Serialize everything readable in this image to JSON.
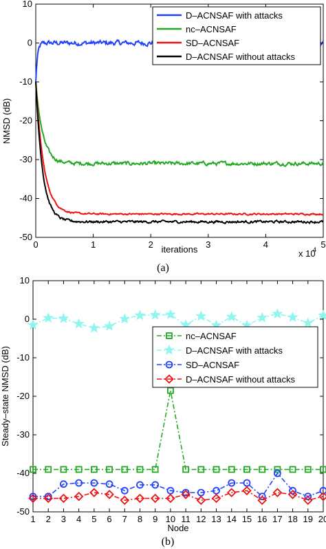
{
  "chart_data": [
    {
      "type": "line",
      "caption": "(a)",
      "xlabel": "iterations",
      "ylabel": "NMSD (dB)",
      "x_multiplier_label": "x 10",
      "x_multiplier_exp": "4",
      "xlim": [
        0,
        5
      ],
      "ylim": [
        -50,
        10
      ],
      "xticks": [
        "0",
        "1",
        "2",
        "3",
        "4",
        "5"
      ],
      "yticks": [
        "10",
        "0",
        "-10",
        "-20",
        "-30",
        "-40",
        "-50"
      ],
      "legend_position": "top-right",
      "series": [
        {
          "name": "D–ACNSAF with attacks",
          "color": "#1f3fff",
          "start": -10,
          "steady": 0,
          "tau": 0.03,
          "noise": 1.2
        },
        {
          "name": "nc–ACNSAF",
          "color": "#22a822",
          "start": -10,
          "steady": -31,
          "tau": 0.12,
          "noise": 0.9
        },
        {
          "name": "SD–ACNSAF",
          "color": "#ee1111",
          "start": -10,
          "steady": -44,
          "tau": 0.14,
          "noise": 0.4
        },
        {
          "name": "D–ACNSAF without attacks",
          "color": "#000000",
          "start": -10,
          "steady": -46,
          "tau": 0.12,
          "noise": 0.6
        }
      ]
    },
    {
      "type": "line",
      "caption": "(b)",
      "xlabel": "Node",
      "ylabel": "Steady–state NMSD (dB)",
      "xlim": [
        1,
        20
      ],
      "ylim": [
        -50,
        10
      ],
      "yticks": [
        "10",
        "0",
        "-10",
        "-20",
        "-30",
        "-40",
        "-50"
      ],
      "categories": [
        "1",
        "2",
        "3",
        "4",
        "5",
        "6",
        "7",
        "8",
        "9",
        "10",
        "11",
        "12",
        "13",
        "14",
        "15",
        "16",
        "17",
        "18",
        "19",
        "20"
      ],
      "legend_position": "center-right",
      "series": [
        {
          "name": "nc–ACNSAF",
          "color": "#22a822",
          "marker": "square",
          "values": [
            -39,
            -39,
            -39,
            -39,
            -39,
            -39,
            -39,
            -39,
            -39,
            -18.5,
            -39,
            -39,
            -39,
            -39,
            -39,
            -39,
            -39,
            -39,
            -39,
            -39
          ]
        },
        {
          "name": "D–ACNSAF with attacks",
          "color": "#8ef5ef",
          "marker": "star",
          "values": [
            -1.5,
            0.3,
            0.2,
            -1.2,
            -2.3,
            -1.8,
            0.1,
            1.0,
            1.1,
            1.2,
            -1.5,
            0.8,
            -1.6,
            0.6,
            -1.6,
            0.4,
            1.4,
            0.5,
            -1.0,
            1.0
          ]
        },
        {
          "name": "SD–ACNSAF",
          "color": "#1f3fff",
          "marker": "circle",
          "values": [
            -46,
            -46,
            -42.8,
            -42.5,
            -42.5,
            -42.8,
            -44.5,
            -43,
            -43,
            -44.5,
            -45,
            -45,
            -44.5,
            -42.5,
            -42.5,
            -46,
            -40,
            -44.5,
            -46,
            -44.5
          ]
        },
        {
          "name": "D–ACNSAF without attacks",
          "color": "#ee1111",
          "marker": "diamond",
          "values": [
            -46.5,
            -46.5,
            -46.5,
            -46,
            -45,
            -45.5,
            -47,
            -46.5,
            -46.5,
            -46.5,
            -45.5,
            -47,
            -46.5,
            -45,
            -44.5,
            -47,
            -45,
            -45.5,
            -47,
            -46
          ]
        }
      ]
    }
  ]
}
